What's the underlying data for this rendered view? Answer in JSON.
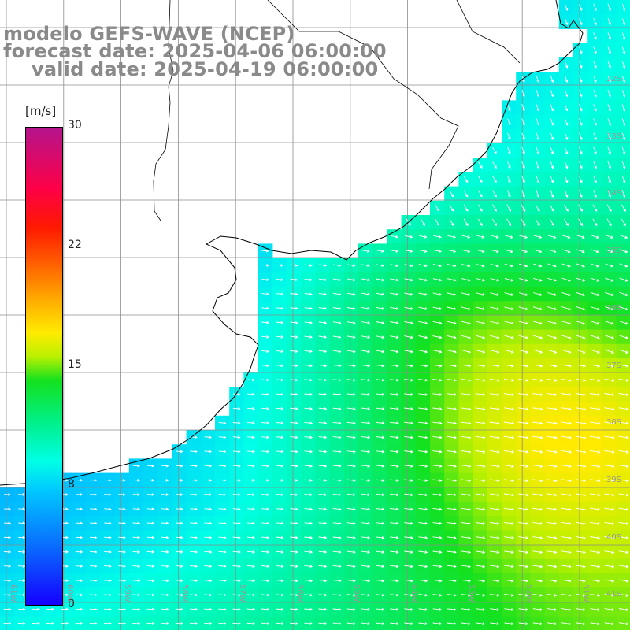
{
  "header": {
    "title": "modelo GEFS-WAVE (NCEP)",
    "forecast": "forecast date: 2025-04-06 06:00:00",
    "valid": "valid date: 2025-04-19 06:00:00"
  },
  "colorbar": {
    "unit": "[m/s]",
    "ticks": [
      "30",
      "22",
      "15",
      "8",
      "0"
    ],
    "colors": [
      "#1400ff",
      "#00c8ff",
      "#00ffe6",
      "#14e11e",
      "#ffeb00",
      "#ff5a00",
      "#ff0046",
      "#b4148c"
    ]
  },
  "lat_labels": [
    "32S",
    "33S",
    "34S",
    "35S",
    "36S",
    "37S",
    "38S",
    "39S",
    "40S",
    "41S"
  ],
  "lon_labels": [
    "61W",
    "60W",
    "59W",
    "58W",
    "57W",
    "56W",
    "55W",
    "54W",
    "53W",
    "52W",
    "51W"
  ],
  "field": {
    "variable": "wind speed",
    "units": "m/s",
    "land_color": "#ffffff",
    "grid_color": "#8c8c8c",
    "coast_color": "#000000",
    "arrow_color": "#ffffff"
  }
}
